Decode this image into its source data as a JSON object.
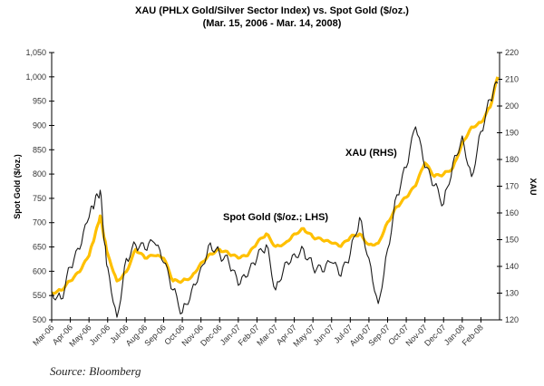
{
  "chart_data": {
    "type": "line",
    "title": "XAU (PHLX Gold/Silver Sector Index) vs. Spot Gold ($/oz.)",
    "subtitle": "(Mar. 15, 2006 - Mar. 14, 2008)",
    "source": "Source: Bloomberg",
    "xlabel": "",
    "ylabel_left": "Spot Gold ($/oz.)",
    "ylabel_right": "XAU",
    "ylim_left": [
      500,
      1050
    ],
    "ylim_right": [
      120,
      220
    ],
    "yticks_left": [
      "500",
      "550",
      "600",
      "650",
      "700",
      "750",
      "800",
      "850",
      "900",
      "950",
      "1,000",
      "1,050"
    ],
    "yticks_right": [
      "120",
      "130",
      "140",
      "150",
      "160",
      "170",
      "180",
      "190",
      "200",
      "210",
      "220"
    ],
    "x_tick_labels": [
      "Mar-06",
      "Apr-06",
      "May-06",
      "Jun-06",
      "Jul-06",
      "Aug-06",
      "Sep-06",
      "Oct-06",
      "Nov-06",
      "Dec-06",
      "Jan-07",
      "Feb-07",
      "Mar-07",
      "Apr-07",
      "May-07",
      "Jun-07",
      "Jul-07",
      "Aug-07",
      "Sep-07",
      "Oct-07",
      "Nov-07",
      "Dec-07",
      "Jan-08",
      "Feb-08"
    ],
    "grid": false,
    "annotations": [
      {
        "text": "Spot Gold ($/oz.; LHS)",
        "series": "Spot Gold"
      },
      {
        "text": "XAU (RHS)",
        "series": "XAU"
      }
    ],
    "x_months": [
      0,
      0.5,
      1,
      1.5,
      2,
      2.3,
      2.6,
      2.85,
      3,
      3.5,
      4,
      4.5,
      5,
      5.5,
      6,
      6.5,
      7,
      7.5,
      8,
      8.5,
      9,
      9.5,
      10,
      10.5,
      11,
      11.5,
      12,
      12.5,
      13,
      13.5,
      14,
      14.5,
      15,
      15.5,
      16,
      16.5,
      17,
      17.5,
      18,
      18.5,
      19,
      19.5,
      20,
      20.5,
      21,
      21.5,
      22,
      22.5,
      23,
      23.5,
      23.9
    ],
    "series": [
      {
        "name": "Spot Gold",
        "axis": "left",
        "color": "#FFC000",
        "values": [
          556,
          561,
          580,
          599,
          632,
          670,
          714,
          664,
          636,
          580,
          599,
          645,
          627,
          632,
          627,
          580,
          580,
          589,
          617,
          636,
          645,
          636,
          627,
          632,
          658,
          677,
          651,
          658,
          677,
          688,
          670,
          664,
          658,
          651,
          670,
          677,
          655,
          658,
          701,
          733,
          752,
          776,
          823,
          795,
          800,
          813,
          864,
          897,
          906,
          938,
          1000
        ]
      },
      {
        "name": "XAU",
        "axis": "right",
        "color": "#1a1a1a",
        "values": [
          130.5,
          127.8,
          139.7,
          146.4,
          158.3,
          163.4,
          168.5,
          148.1,
          139.7,
          121,
          143,
          148.1,
          146.4,
          148.8,
          141.4,
          131.2,
          122.7,
          131.2,
          139.7,
          148.8,
          144.7,
          141.4,
          132.9,
          136.3,
          143,
          148.1,
          131.2,
          141.4,
          144.7,
          146.4,
          139.7,
          138,
          141.4,
          136.3,
          144.7,
          158.3,
          143,
          126.1,
          146.4,
          166.8,
          177,
          192.2,
          177,
          170.2,
          163.4,
          178.6,
          188.8,
          173.6,
          190.5,
          202.4,
          208.5
        ]
      }
    ]
  }
}
